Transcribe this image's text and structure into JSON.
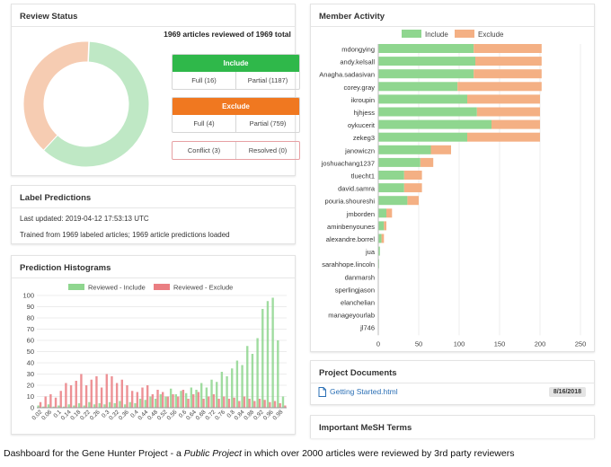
{
  "review_status": {
    "title": "Review Status",
    "summary": "1969 articles reviewed of 1969 total",
    "donut": {
      "include": 1203,
      "exclude": 763,
      "conflict": 3
    },
    "include": {
      "label": "Include",
      "full": "Full (16)",
      "partial": "Partial (1187)"
    },
    "exclude": {
      "label": "Exclude",
      "full": "Full (4)",
      "partial": "Partial (759)"
    },
    "conflict": {
      "conflict": "Conflict (3)",
      "resolved": "Resolved (0)"
    }
  },
  "label_predictions": {
    "title": "Label Predictions",
    "updated": "Last updated: 2019-04-12 17:53:13 UTC",
    "trained": "Trained from 1969 labeled articles; 1969 article predictions loaded"
  },
  "histograms": {
    "title": "Prediction Histograms",
    "legend_include": "Reviewed - Include",
    "legend_exclude": "Reviewed - Exclude",
    "colors": {
      "include": "#8fd68f",
      "exclude": "#ea7e82"
    },
    "y_ticks": [
      "100",
      "90",
      "80",
      "70",
      "60",
      "50",
      "40",
      "30",
      "20",
      "10",
      "0"
    ],
    "x_ticks": [
      "0.02",
      "0.06",
      "0.1",
      "0.14",
      "0.18",
      "0.22",
      "0.26",
      "0.3",
      "0.32",
      "0.36",
      "0.4",
      "0.44",
      "0.48",
      "0.52",
      "0.56",
      "0.6",
      "0.64",
      "0.68",
      "0.72",
      "0.76",
      "0.8",
      "0.84",
      "0.88",
      "0.92",
      "0.96",
      "0.98"
    ]
  },
  "member_activity": {
    "title": "Member Activity",
    "legend_include": "Include",
    "legend_exclude": "Exclude",
    "colors": {
      "include": "#8fd68f",
      "exclude": "#f4b084"
    },
    "x_ticks": [
      "0",
      "50",
      "100",
      "150",
      "200",
      "250"
    ]
  },
  "project_documents": {
    "title": "Project Documents",
    "file": "Getting Started.html",
    "date": "8/16/2018"
  },
  "mesh": {
    "title": "Important MeSH Terms"
  },
  "caption": {
    "prefix": "Dashboard for the Gene Hunter Project - a ",
    "emph": "Public Project",
    "suffix": " in which over 2000 articles were reviewed by 3rd party reviewers"
  },
  "chart_data": [
    {
      "type": "bar",
      "orientation": "horizontal",
      "stacked": true,
      "title": "Member Activity",
      "categories": [
        "mdongying",
        "andy.kelsall",
        "Anagha.sadasivan",
        "corey.gray",
        "ikroupin",
        "hjhjess",
        "oykucerit",
        "zekeg3",
        "janowiczn",
        "joshuachang1237",
        "tluecht1",
        "david.samra",
        "pouria.shoureshi",
        "jmborden",
        "aminbenyounes",
        "alexandre.borrel",
        "jua",
        "sarahhope.lincoln",
        "danmarsh",
        "sperlingjason",
        "elanchelian",
        "manageyourlab",
        "jl746"
      ],
      "series": [
        {
          "name": "Include",
          "values": [
            118,
            120,
            118,
            98,
            110,
            122,
            140,
            110,
            65,
            52,
            32,
            32,
            36,
            10,
            7,
            4,
            2,
            1,
            0,
            0,
            0,
            0,
            0
          ]
        },
        {
          "name": "Exclude",
          "values": [
            84,
            82,
            84,
            104,
            90,
            78,
            60,
            90,
            25,
            16,
            22,
            22,
            14,
            7,
            3,
            3,
            0,
            0,
            0,
            0,
            0,
            0,
            0
          ]
        }
      ],
      "xlim": [
        0,
        250
      ],
      "legend": "top"
    },
    {
      "type": "bar",
      "title": "Prediction Histograms",
      "x": [
        0.02,
        0.04,
        0.06,
        0.08,
        0.1,
        0.12,
        0.14,
        0.16,
        0.18,
        0.2,
        0.22,
        0.24,
        0.26,
        0.28,
        0.3,
        0.32,
        0.34,
        0.36,
        0.38,
        0.4,
        0.42,
        0.44,
        0.46,
        0.48,
        0.5,
        0.52,
        0.54,
        0.56,
        0.58,
        0.6,
        0.62,
        0.64,
        0.66,
        0.68,
        0.7,
        0.72,
        0.74,
        0.76,
        0.78,
        0.8,
        0.82,
        0.84,
        0.86,
        0.88,
        0.9,
        0.92,
        0.94,
        0.96,
        0.98
      ],
      "series": [
        {
          "name": "Reviewed - Include",
          "values": [
            2,
            1,
            3,
            1,
            2,
            1,
            3,
            2,
            4,
            2,
            5,
            3,
            4,
            3,
            5,
            4,
            6,
            3,
            5,
            4,
            8,
            7,
            10,
            8,
            12,
            10,
            17,
            12,
            15,
            13,
            18,
            16,
            22,
            18,
            25,
            23,
            32,
            28,
            35,
            42,
            38,
            55,
            48,
            62,
            88,
            95,
            98,
            60,
            10
          ]
        },
        {
          "name": "Reviewed - Exclude",
          "values": [
            5,
            10,
            12,
            9,
            15,
            22,
            20,
            24,
            30,
            20,
            25,
            28,
            18,
            30,
            28,
            22,
            25,
            20,
            15,
            14,
            18,
            20,
            12,
            16,
            14,
            10,
            12,
            10,
            16,
            8,
            12,
            14,
            8,
            10,
            12,
            8,
            10,
            8,
            9,
            6,
            10,
            8,
            6,
            8,
            7,
            5,
            6,
            4,
            2
          ]
        }
      ],
      "ylim": [
        0,
        100
      ],
      "legend": "top"
    }
  ]
}
